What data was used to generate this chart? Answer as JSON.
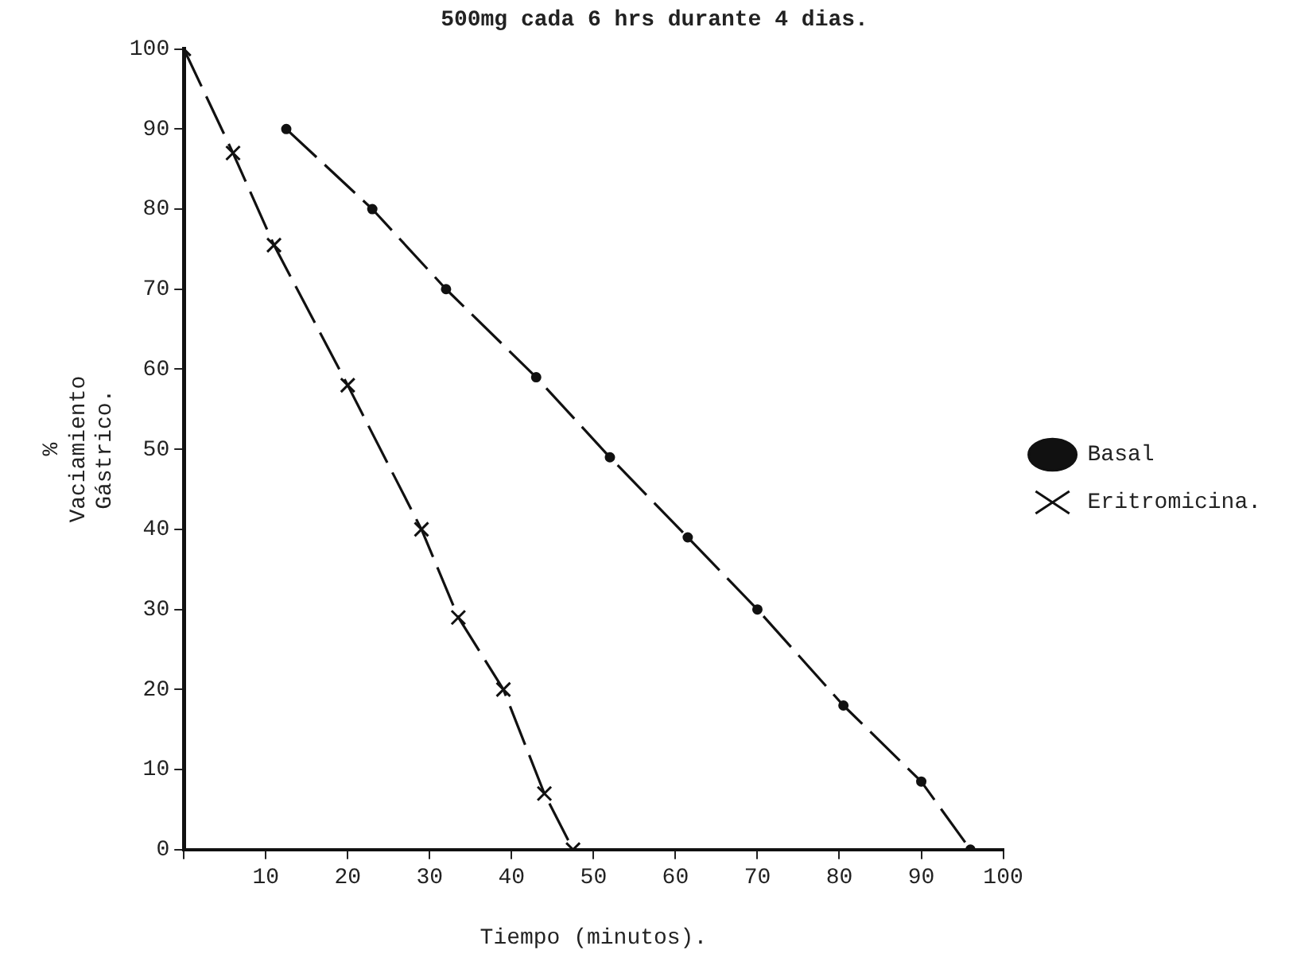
{
  "chart_data": {
    "type": "line",
    "title": "500mg cada 6 hrs durante 4 dias.",
    "xlabel": "Tiempo (minutos).",
    "ylabel": "% Vaciamiento Gástrico.",
    "xlim": [
      0,
      100
    ],
    "xticks": [
      {
        "value": 0,
        "label": null
      },
      10,
      20,
      30,
      40,
      50,
      60,
      70,
      80,
      90,
      100
    ],
    "ylim": [
      0,
      100
    ],
    "yticks": [
      0,
      10,
      20,
      30,
      40,
      50,
      60,
      70,
      80,
      90,
      100
    ],
    "grid": false,
    "legend": "right",
    "line_style": "dashed",
    "series": [
      {
        "name": "Basal",
        "color": "#111111",
        "marker": "circle",
        "x": [
          12.5,
          23,
          32,
          43,
          52,
          61.5,
          70,
          80.5,
          90,
          96
        ],
        "values": [
          90,
          80,
          70,
          59,
          49,
          39,
          30,
          18,
          8.5,
          0
        ]
      },
      {
        "name": "Eritromicina.",
        "color": "#111111",
        "marker": "cross",
        "x": [
          0,
          6,
          11,
          20,
          29,
          33.5,
          39,
          44,
          47.5
        ],
        "values": [
          100,
          87,
          75.5,
          58,
          40,
          29,
          20,
          7,
          0
        ]
      }
    ]
  }
}
